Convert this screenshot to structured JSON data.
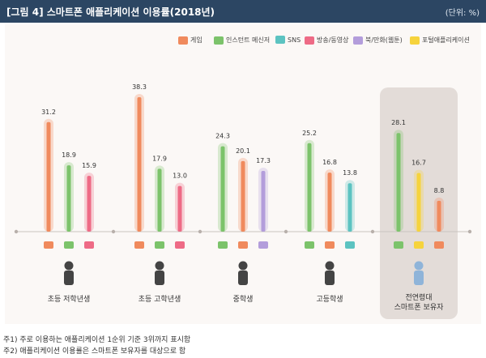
{
  "header": {
    "title": "[그림 4]  스마트폰 애플리케이션 이용률(2018년)",
    "unit": "(단위: %)"
  },
  "legend": [
    {
      "name": "게임",
      "icon": "game-icon",
      "color": "#f08a5d"
    },
    {
      "name": "인스턴트 메신저",
      "icon": "messenger-icon",
      "color": "#7cc36b"
    },
    {
      "name": "SNS",
      "icon": "sns-icon",
      "color": "#5cc3c1"
    },
    {
      "name": "방송/동영상",
      "icon": "video-icon",
      "color": "#ee6b86"
    },
    {
      "name": "북/만화(웹툰)",
      "icon": "book-icon",
      "color": "#b39ddb"
    },
    {
      "name": "포털애플리케이션",
      "icon": "portal-icon",
      "color": "#f6d33c"
    }
  ],
  "chart_data": {
    "type": "bar",
    "title": "스마트폰 애플리케이션 이용률(2018년)",
    "unit": "%",
    "ylim": [
      0,
      40
    ],
    "groups": [
      {
        "label": "초등 저학년생",
        "bars": [
          {
            "series": "게임",
            "value": 31.2
          },
          {
            "series": "인스턴트 메신저",
            "value": 18.9
          },
          {
            "series": "방송/동영상",
            "value": 15.9
          }
        ]
      },
      {
        "label": "초등 고학년생",
        "bars": [
          {
            "series": "게임",
            "value": 38.3
          },
          {
            "series": "인스턴트 메신저",
            "value": 17.9
          },
          {
            "series": "방송/동영상",
            "value": 13.0
          }
        ]
      },
      {
        "label": "중학생",
        "bars": [
          {
            "series": "인스턴트 메신저",
            "value": 24.3
          },
          {
            "series": "게임",
            "value": 20.1
          },
          {
            "series": "북/만화(웹툰)",
            "value": 17.3
          }
        ]
      },
      {
        "label": "고등학생",
        "bars": [
          {
            "series": "인스턴트 메신저",
            "value": 25.2
          },
          {
            "series": "게임",
            "value": 16.8
          },
          {
            "series": "SNS",
            "value": 13.8
          }
        ]
      },
      {
        "label": "전연령대 스마트폰 보유자",
        "highlight": true,
        "bars": [
          {
            "series": "인스턴트 메신저",
            "value": 28.1
          },
          {
            "series": "포털애플리케이션",
            "value": 16.7
          },
          {
            "series": "게임",
            "value": 8.8
          }
        ]
      }
    ]
  },
  "notes": [
    "주1) 주로 이용하는 애플리케이션 1순위 기준 3위까지 표시함",
    "주2) 애플리케이션 이용률은 스마트폰 보유자를 대상으로 함"
  ]
}
